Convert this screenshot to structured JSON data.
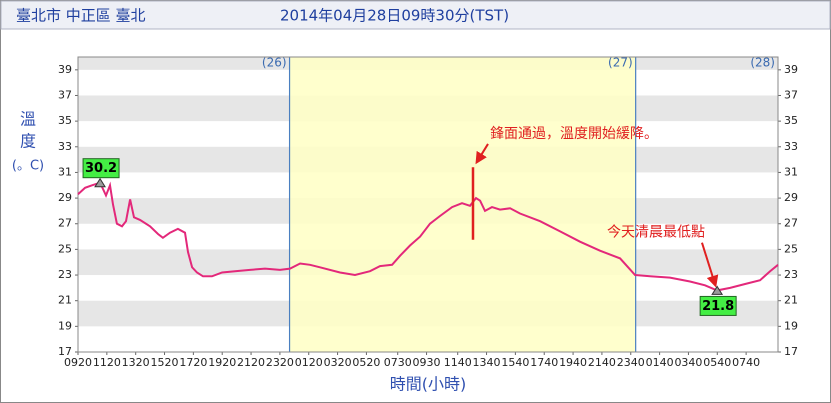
{
  "chart_data": {
    "type": "line",
    "title": "臺北市 中正區 臺北",
    "subtitle": "2014年04月28日09時30分(TST)",
    "ylabel": [
      "溫",
      "度",
      "(。C)"
    ],
    "xlabel": "時間(小時)",
    "xlim": [
      0,
      48.54
    ],
    "ylim": [
      17,
      40
    ],
    "yticks": [
      17,
      19,
      21,
      23,
      25,
      27,
      29,
      31,
      33,
      35,
      37,
      39
    ],
    "xticks": [
      {
        "value": 0,
        "label": "0920"
      },
      {
        "value": 2,
        "label": "1120"
      },
      {
        "value": 4,
        "label": "1320"
      },
      {
        "value": 6,
        "label": "1520"
      },
      {
        "value": 8,
        "label": "1720"
      },
      {
        "value": 10,
        "label": "1920"
      },
      {
        "value": 12,
        "label": "2120"
      },
      {
        "value": 14,
        "label": "2320"
      },
      {
        "value": 16,
        "label": "0120"
      },
      {
        "value": 18,
        "label": "0320"
      },
      {
        "value": 20,
        "label": "0520"
      },
      {
        "value": 22.17,
        "label": "0730"
      },
      {
        "value": 24.17,
        "label": "0930"
      },
      {
        "value": 26.33,
        "label": "1140"
      },
      {
        "value": 28.33,
        "label": "1340"
      },
      {
        "value": 30.33,
        "label": "1540"
      },
      {
        "value": 32.33,
        "label": "1740"
      },
      {
        "value": 34.33,
        "label": "1940"
      },
      {
        "value": 36.33,
        "label": "2140"
      },
      {
        "value": 38.33,
        "label": "2340"
      },
      {
        "value": 40.33,
        "label": "0140"
      },
      {
        "value": 42.33,
        "label": "0340"
      },
      {
        "value": 44.33,
        "label": "0540"
      },
      {
        "value": 46.33,
        "label": "0740"
      }
    ],
    "grid": true,
    "day_lines": [
      14.67,
      38.67
    ],
    "shaded": [
      14.67,
      38.67
    ],
    "shade_color": "#ffffc4",
    "day_labels": [
      {
        "x": 14.67,
        "label": "(26)"
      },
      {
        "x": 38.67,
        "label": "(27)"
      },
      {
        "x": 48.54,
        "label": "(28)"
      }
    ],
    "series": [
      {
        "name": "溫度",
        "color": "#e3287a",
        "x": [
          0,
          0.49,
          0.97,
          1.53,
          1.94,
          2.22,
          2.43,
          2.7,
          3.05,
          3.33,
          3.61,
          3.88,
          4.3,
          4.99,
          5.55,
          5.89,
          6.38,
          6.93,
          7.42,
          7.63,
          7.91,
          8.25,
          8.67,
          9.29,
          9.99,
          10.89,
          11.93,
          12.97,
          14.01,
          14.7,
          15.4,
          16.09,
          16.78,
          18.17,
          19.21,
          20.25,
          20.94,
          21.78,
          22.33,
          23.02,
          23.72,
          24.41,
          25.1,
          25.94,
          26.63,
          27.18,
          27.6,
          27.88,
          28.22,
          28.71,
          29.26,
          29.96,
          30.65,
          32.04,
          33.43,
          34.81,
          36.2,
          37.59,
          38.63,
          39.67,
          41.05,
          42.44,
          43.48,
          44.32,
          45.22,
          46.26,
          47.3,
          47.99,
          48.54
        ],
        "values": [
          29.3,
          29.8,
          30.0,
          30.2,
          29.2,
          30.0,
          28.5,
          27.0,
          26.8,
          27.2,
          28.9,
          27.5,
          27.3,
          26.8,
          26.2,
          25.9,
          26.3,
          26.6,
          26.3,
          24.8,
          23.6,
          23.2,
          22.9,
          22.9,
          23.2,
          23.3,
          23.4,
          23.5,
          23.4,
          23.5,
          23.9,
          23.8,
          23.6,
          23.2,
          23.0,
          23.3,
          23.7,
          23.8,
          24.5,
          25.3,
          26.0,
          27.0,
          27.6,
          28.3,
          28.6,
          28.4,
          29.0,
          28.8,
          28.0,
          28.3,
          28.1,
          28.2,
          27.8,
          27.2,
          26.4,
          25.6,
          24.9,
          24.3,
          23.0,
          22.9,
          22.8,
          22.5,
          22.2,
          21.8,
          22.0,
          22.3,
          22.6,
          23.3,
          23.8
        ],
        "value_labels": [
          null,
          null,
          null,
          "30.2",
          null,
          null,
          null,
          null,
          null,
          null,
          null,
          null,
          null,
          null,
          null,
          null,
          null,
          null,
          null,
          null,
          null,
          null,
          null,
          null,
          null,
          null,
          null,
          null,
          null,
          null,
          null,
          null,
          null,
          null,
          null,
          null,
          null,
          null,
          null,
          null,
          null,
          null,
          null,
          null,
          null,
          null,
          null,
          null,
          null,
          null,
          null,
          null,
          null,
          null,
          null,
          null,
          null,
          null,
          null,
          null,
          null,
          null,
          null,
          "21.8",
          null,
          null,
          null,
          null,
          null
        ]
      }
    ],
    "markers": [
      {
        "x": 27.39,
        "y": [
          25.75,
          31.4
        ],
        "color": "#e02020"
      }
    ],
    "annotations": [
      {
        "text": "鋒面通過，溫度開始緩降。",
        "x": 28.57,
        "y": 34.0,
        "arrow_to": [
          27.65,
          31.8
        ]
      },
      {
        "text": "今天清晨最低點",
        "x": 36.68,
        "y": 26.3,
        "arrow_to": [
          44.2,
          22.2
        ]
      }
    ]
  }
}
